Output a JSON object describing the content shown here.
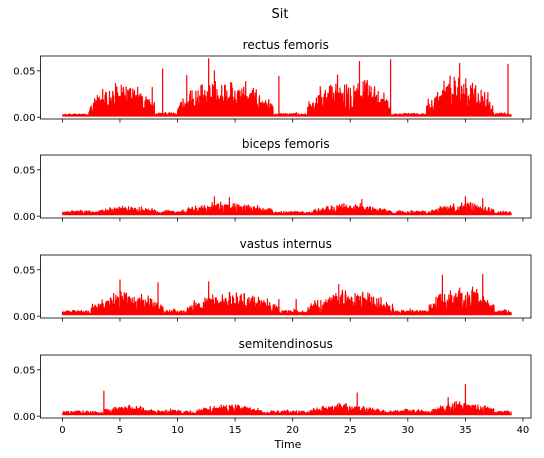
{
  "chart_data": {
    "type": "line",
    "title": "Sit",
    "xlabel": "Time",
    "xlim": [
      -1.9,
      40.7
    ],
    "x_ticks": [
      0,
      5,
      10,
      15,
      20,
      25,
      30,
      35,
      40
    ],
    "shared_x": true,
    "grid": false,
    "line_color": "#ff0000",
    "x_end": 39,
    "subplots": [
      {
        "title": "rectus femoris",
        "ylim": [
          -0.002,
          0.066
        ],
        "y_ticks": [
          0.0,
          0.05
        ],
        "y_tick_labels": [
          "0.00",
          "0.05"
        ],
        "baseline": 0.003,
        "segments": [
          {
            "x0": 0.0,
            "x1": 2.3,
            "peak": 0.004
          },
          {
            "x0": 2.3,
            "x1": 8.0,
            "peak": 0.042
          },
          {
            "x0": 8.0,
            "x1": 10.0,
            "peak": 0.006
          },
          {
            "x0": 10.0,
            "x1": 18.3,
            "peak": 0.045
          },
          {
            "x0": 18.3,
            "x1": 21.3,
            "peak": 0.005
          },
          {
            "x0": 21.3,
            "x1": 28.5,
            "peak": 0.05
          },
          {
            "x0": 28.5,
            "x1": 31.6,
            "peak": 0.005
          },
          {
            "x0": 31.6,
            "x1": 37.5,
            "peak": 0.05
          },
          {
            "x0": 37.5,
            "x1": 39.0,
            "peak": 0.005
          }
        ],
        "spikes": [
          [
            3.5,
            0.03
          ],
          [
            7.8,
            0.032
          ],
          [
            8.7,
            0.052
          ],
          [
            10.8,
            0.045
          ],
          [
            12.7,
            0.063
          ],
          [
            13.2,
            0.05
          ],
          [
            18.8,
            0.044
          ],
          [
            25.8,
            0.06
          ],
          [
            28.5,
            0.062
          ],
          [
            34.5,
            0.058
          ],
          [
            38.7,
            0.057
          ]
        ]
      },
      {
        "title": "biceps femoris",
        "ylim": [
          -0.002,
          0.066
        ],
        "y_ticks": [
          0.0,
          0.05
        ],
        "y_tick_labels": [
          "0.00",
          "0.05"
        ],
        "baseline": 0.004,
        "segments": [
          {
            "x0": 0.0,
            "x1": 3.0,
            "peak": 0.007
          },
          {
            "x0": 3.0,
            "x1": 8.3,
            "peak": 0.012
          },
          {
            "x0": 8.3,
            "x1": 10.3,
            "peak": 0.007
          },
          {
            "x0": 10.3,
            "x1": 18.3,
            "peak": 0.016
          },
          {
            "x0": 18.3,
            "x1": 21.8,
            "peak": 0.006
          },
          {
            "x0": 21.8,
            "x1": 28.5,
            "peak": 0.015
          },
          {
            "x0": 28.5,
            "x1": 32.0,
            "peak": 0.007
          },
          {
            "x0": 32.0,
            "x1": 37.5,
            "peak": 0.016
          },
          {
            "x0": 37.5,
            "x1": 39.0,
            "peak": 0.006
          }
        ],
        "spikes": [
          [
            13.2,
            0.021
          ],
          [
            14.5,
            0.02
          ],
          [
            26.0,
            0.018
          ],
          [
            35.0,
            0.021
          ],
          [
            36.5,
            0.019
          ]
        ]
      },
      {
        "title": "vastus internus",
        "ylim": [
          -0.002,
          0.066
        ],
        "y_ticks": [
          0.0,
          0.05
        ],
        "y_tick_labels": [
          "0.00",
          "0.05"
        ],
        "baseline": 0.004,
        "segments": [
          {
            "x0": 0.0,
            "x1": 2.5,
            "peak": 0.007
          },
          {
            "x0": 2.5,
            "x1": 8.8,
            "peak": 0.03
          },
          {
            "x0": 8.8,
            "x1": 10.8,
            "peak": 0.008
          },
          {
            "x0": 10.8,
            "x1": 18.8,
            "peak": 0.03
          },
          {
            "x0": 18.8,
            "x1": 21.3,
            "peak": 0.008
          },
          {
            "x0": 21.3,
            "x1": 28.8,
            "peak": 0.03
          },
          {
            "x0": 28.8,
            "x1": 31.8,
            "peak": 0.008
          },
          {
            "x0": 31.8,
            "x1": 37.5,
            "peak": 0.035
          },
          {
            "x0": 37.5,
            "x1": 39.0,
            "peak": 0.008
          }
        ],
        "spikes": [
          [
            5.0,
            0.039
          ],
          [
            8.3,
            0.036
          ],
          [
            12.7,
            0.037
          ],
          [
            18.8,
            0.018
          ],
          [
            20.3,
            0.018
          ],
          [
            24.0,
            0.034
          ],
          [
            33.0,
            0.044
          ],
          [
            36.5,
            0.045
          ]
        ]
      },
      {
        "title": "semitendinosus",
        "ylim": [
          -0.002,
          0.066
        ],
        "y_ticks": [
          0.0,
          0.05
        ],
        "y_tick_labels": [
          "0.00",
          "0.05"
        ],
        "baseline": 0.004,
        "segments": [
          {
            "x0": 0.0,
            "x1": 3.5,
            "peak": 0.007
          },
          {
            "x0": 3.5,
            "x1": 8.0,
            "peak": 0.013
          },
          {
            "x0": 8.0,
            "x1": 11.5,
            "peak": 0.008
          },
          {
            "x0": 11.5,
            "x1": 17.5,
            "peak": 0.014
          },
          {
            "x0": 17.5,
            "x1": 21.5,
            "peak": 0.007
          },
          {
            "x0": 21.5,
            "x1": 28.0,
            "peak": 0.015
          },
          {
            "x0": 28.0,
            "x1": 32.0,
            "peak": 0.008
          },
          {
            "x0": 32.0,
            "x1": 37.5,
            "peak": 0.017
          },
          {
            "x0": 37.5,
            "x1": 39.0,
            "peak": 0.007
          }
        ],
        "spikes": [
          [
            3.6,
            0.027
          ],
          [
            25.6,
            0.025
          ],
          [
            33.5,
            0.02
          ],
          [
            35.0,
            0.034
          ]
        ]
      }
    ]
  }
}
